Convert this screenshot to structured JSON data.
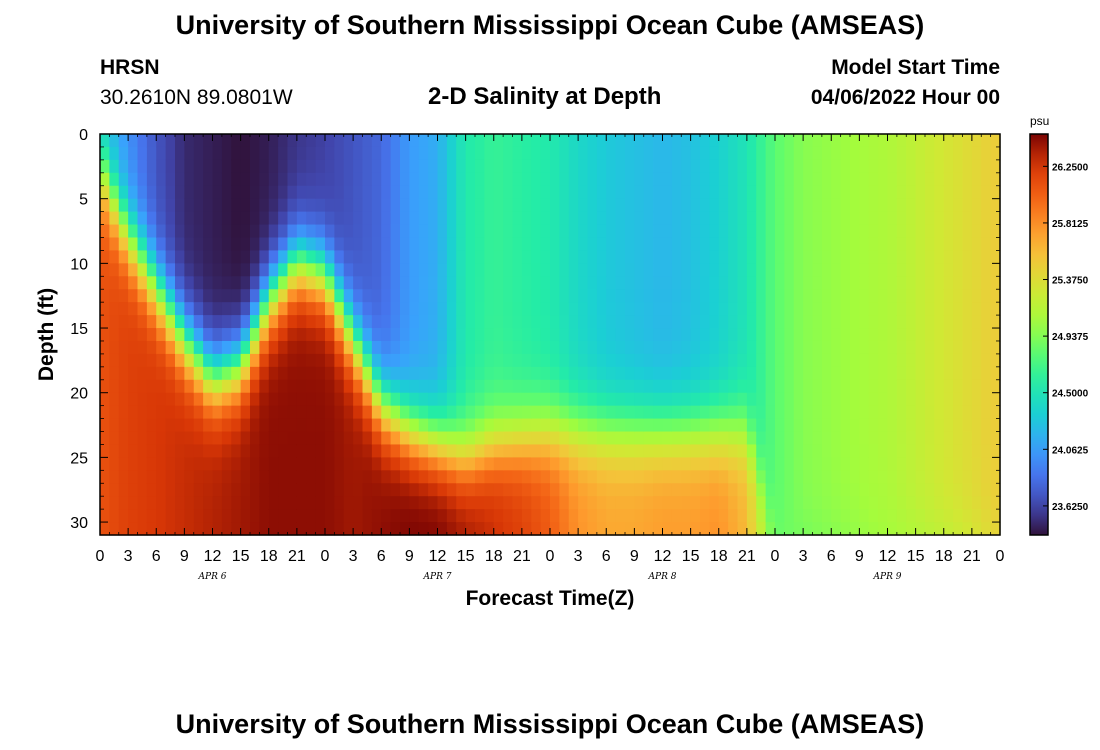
{
  "header": {
    "title": "University of Southern Mississippi Ocean Cube (AMSEAS)",
    "station": "HRSN",
    "coords": "30.2610N  89.0801W",
    "subtitle": "2-D Salinity at Depth",
    "model_start_label": "Model Start Time",
    "model_start_value": "04/06/2022 Hour 00"
  },
  "footer": {
    "title": "University of Southern Mississippi Ocean Cube (AMSEAS)"
  },
  "chart_data": {
    "type": "heatmap",
    "title": "2-D Salinity at Depth",
    "xlabel": "Forecast Time(Z)",
    "ylabel": "Depth (ft)",
    "xlim": [
      0,
      96
    ],
    "ylim": [
      31,
      0
    ],
    "x_tick_labels": [
      "0",
      "3",
      "6",
      "9",
      "12",
      "15",
      "18",
      "21",
      "0",
      "3",
      "6",
      "9",
      "12",
      "15",
      "18",
      "21",
      "0",
      "3",
      "6",
      "9",
      "12",
      "15",
      "18",
      "21",
      "0",
      "3",
      "6",
      "9",
      "12",
      "15",
      "18",
      "21",
      "0"
    ],
    "y_tick_labels": [
      "0",
      "5",
      "10",
      "15",
      "20",
      "25",
      "30"
    ],
    "day_labels": [
      "APR 6",
      "APR 7",
      "APR 8",
      "APR 9"
    ],
    "colorbar": {
      "unit": "psu",
      "labels": [
        "26.2500",
        "25.8125",
        "25.3750",
        "24.9375",
        "24.5000",
        "24.0625",
        "23.6250"
      ],
      "range": [
        23.4,
        26.5
      ]
    },
    "surface_salinity": [
      24.3,
      24.0,
      23.7,
      23.5,
      23.45,
      23.4,
      23.45,
      23.55,
      23.6,
      23.7,
      23.8,
      24.05,
      24.15,
      24.55,
      24.65,
      24.6,
      24.55,
      24.4,
      24.3,
      24.25,
      24.2,
      24.25,
      24.35,
      24.5,
      24.8,
      24.95,
      25.0,
      25.05,
      25.1,
      25.2,
      25.3,
      25.4,
      25.5
    ],
    "deep_salinity": [
      26.1,
      26.2,
      26.25,
      26.3,
      26.35,
      26.4,
      26.45,
      26.45,
      26.45,
      26.4,
      26.45,
      26.5,
      26.5,
      26.4,
      26.3,
      26.2,
      26.05,
      25.8,
      25.7,
      25.7,
      25.75,
      25.75,
      25.8,
      25.6,
      24.9,
      24.85,
      24.9,
      24.95,
      25.0,
      25.05,
      25.1,
      25.2,
      25.4
    ],
    "halocline_depth_ft": [
      3,
      8,
      12,
      16,
      19,
      18,
      13,
      10,
      11,
      16,
      21,
      23,
      24,
      25,
      24,
      23.5,
      23,
      23,
      23,
      23,
      23,
      23,
      23,
      23,
      31,
      31,
      31,
      31,
      31,
      31,
      31,
      31,
      31
    ]
  }
}
